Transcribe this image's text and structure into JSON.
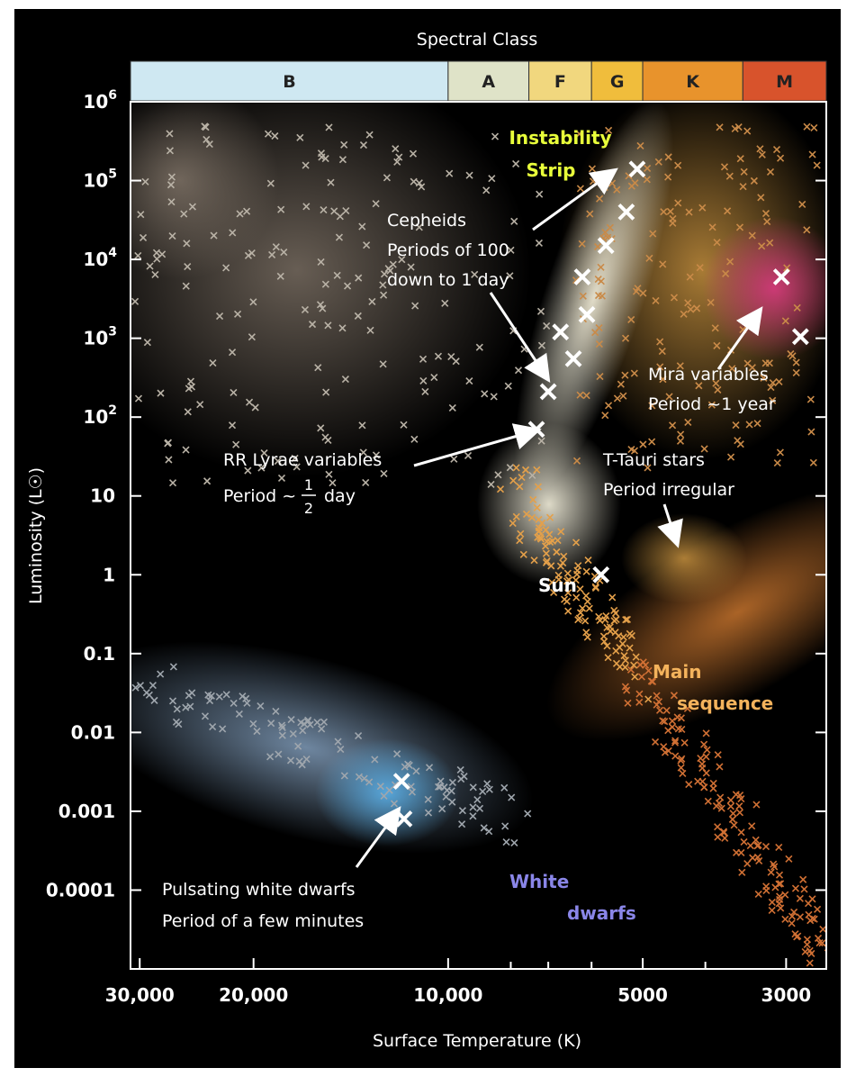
{
  "chart_data": {
    "type": "scatter",
    "title": "",
    "xlabel": "Surface Temperature (K)",
    "ylabel": "Luminosity (L☉)",
    "x_scale": "log",
    "x_reversed": true,
    "xlim": [
      31000,
      2600
    ],
    "y_scale": "log",
    "ylim": [
      1e-05,
      1000000
    ],
    "x_ticks": [
      {
        "value": 30000,
        "label": "30,000"
      },
      {
        "value": 20000,
        "label": "20,000"
      },
      {
        "value": 10000,
        "label": "10,000"
      },
      {
        "value": 5000,
        "label": "5000"
      },
      {
        "value": 3000,
        "label": "3000"
      }
    ],
    "x_minor_ticks": [
      8000,
      7000,
      6000,
      4000
    ],
    "y_ticks": [
      {
        "value": 1000000,
        "label": "10",
        "sup": "6"
      },
      {
        "value": 100000,
        "label": "10",
        "sup": "5"
      },
      {
        "value": 10000,
        "label": "10",
        "sup": "4"
      },
      {
        "value": 1000,
        "label": "10",
        "sup": "3"
      },
      {
        "value": 100,
        "label": "10",
        "sup": "2"
      },
      {
        "value": 10,
        "label": "10",
        "sup": ""
      },
      {
        "value": 1,
        "label": "1",
        "sup": ""
      },
      {
        "value": 0.1,
        "label": "0.1",
        "sup": ""
      },
      {
        "value": 0.01,
        "label": "0.01",
        "sup": ""
      },
      {
        "value": 0.001,
        "label": "0.001",
        "sup": ""
      },
      {
        "value": 0.0001,
        "label": "0.0001",
        "sup": ""
      }
    ],
    "spectral_class": {
      "title": "Spectral Class",
      "bands": [
        {
          "label": "B",
          "t_hot": 31000,
          "t_cool": 10000,
          "color": "#cfe8f2"
        },
        {
          "label": "A",
          "t_hot": 10000,
          "t_cool": 7500,
          "color": "#dfe3c8"
        },
        {
          "label": "F",
          "t_hot": 7500,
          "t_cool": 6000,
          "color": "#f1d77e"
        },
        {
          "label": "G",
          "t_hot": 6000,
          "t_cool": 5000,
          "color": "#f0bd3c"
        },
        {
          "label": "K",
          "t_hot": 5000,
          "t_cool": 3500,
          "color": "#e8932c"
        },
        {
          "label": "M",
          "t_hot": 3500,
          "t_cool": 2600,
          "color": "#d8532c"
        }
      ]
    },
    "series": [
      {
        "name": "Cepheids",
        "marker": "x",
        "color": "#ffffff",
        "points": [
          {
            "x": 5100,
            "y": 140000
          },
          {
            "x": 5300,
            "y": 40000
          },
          {
            "x": 5700,
            "y": 15000
          },
          {
            "x": 6200,
            "y": 6000
          },
          {
            "x": 6100,
            "y": 2000
          },
          {
            "x": 6700,
            "y": 1200
          },
          {
            "x": 6400,
            "y": 550
          },
          {
            "x": 7000,
            "y": 210
          }
        ]
      },
      {
        "name": "RR Lyrae variables",
        "marker": "x",
        "color": "#ffffff",
        "points": [
          {
            "x": 7300,
            "y": 70
          }
        ]
      },
      {
        "name": "Mira variables",
        "marker": "x",
        "color": "#ffffff",
        "points": [
          {
            "x": 3050,
            "y": 6000
          },
          {
            "x": 2850,
            "y": 1050
          }
        ]
      },
      {
        "name": "Sun",
        "marker": "x",
        "color": "#ffffff",
        "points": [
          {
            "x": 5800,
            "y": 1
          }
        ]
      },
      {
        "name": "Pulsating white dwarfs",
        "marker": "x",
        "color": "#ffffff",
        "points": [
          {
            "x": 11800,
            "y": 0.0024
          },
          {
            "x": 11700,
            "y": 0.0008
          }
        ]
      }
    ],
    "regions": [
      {
        "name": "Instability Strip",
        "color": "#e8ff3a"
      },
      {
        "name": "Main sequence",
        "color": "#f4b35c"
      },
      {
        "name": "White dwarfs",
        "color": "#8a86e8"
      }
    ],
    "annotations": [
      {
        "lines": [
          "Instability",
          "Strip"
        ],
        "color": "#e8ff3a"
      },
      {
        "lines": [
          "Cepheids",
          "Periods of 100",
          "down to 1 day"
        ]
      },
      {
        "lines": [
          "RR Lyrae variables",
          "Period ~ 1/2 day"
        ]
      },
      {
        "lines": [
          "Mira variables",
          "Period ~1 year"
        ]
      },
      {
        "lines": [
          "T-Tauri stars",
          "Period irregular"
        ]
      },
      {
        "lines": [
          "Sun"
        ]
      },
      {
        "lines": [
          "Main",
          "sequence"
        ],
        "color": "#f4b35c"
      },
      {
        "lines": [
          "White",
          "dwarfs"
        ],
        "color": "#8a86e8"
      },
      {
        "lines": [
          "Pulsating white dwarfs",
          "Period of a few minutes"
        ]
      }
    ],
    "colors": {
      "background": "#000000",
      "plot_frame": "#ffffff",
      "highlight_marker": "#ffffff"
    }
  }
}
